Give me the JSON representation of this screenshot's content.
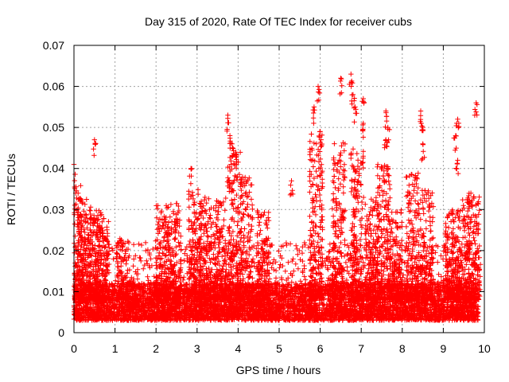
{
  "chart_data": {
    "type": "scatter",
    "title": "Day 315 of 2020, Rate Of TEC Index for receiver cubs",
    "xlabel": "GPS time / hours",
    "ylabel": "ROTI / TECUs",
    "xlim": [
      0,
      10
    ],
    "ylim": [
      0,
      0.07
    ],
    "xticks": [
      "0",
      "1",
      "2",
      "3",
      "4",
      "5",
      "6",
      "7",
      "8",
      "9",
      "10"
    ],
    "yticks": [
      "0",
      "0.01",
      "0.02",
      "0.03",
      "0.04",
      "0.05",
      "0.06",
      "0.07"
    ],
    "grid": true,
    "marker": "plus",
    "color": "#ff0000",
    "data_span_hours": [
      0,
      9.85
    ],
    "baseline_range": [
      0.003,
      0.012
    ],
    "notable_points": [
      {
        "x": 0.0,
        "y": 0.041
      },
      {
        "x": 0.5,
        "y": 0.047
      },
      {
        "x": 2.85,
        "y": 0.04
      },
      {
        "x": 3.75,
        "y": 0.053
      },
      {
        "x": 3.8,
        "y": 0.048
      },
      {
        "x": 3.85,
        "y": 0.046
      },
      {
        "x": 5.3,
        "y": 0.037
      },
      {
        "x": 5.85,
        "y": 0.055
      },
      {
        "x": 5.95,
        "y": 0.06
      },
      {
        "x": 6.0,
        "y": 0.049
      },
      {
        "x": 6.5,
        "y": 0.062
      },
      {
        "x": 6.75,
        "y": 0.063
      },
      {
        "x": 6.8,
        "y": 0.058
      },
      {
        "x": 6.85,
        "y": 0.055
      },
      {
        "x": 7.05,
        "y": 0.057
      },
      {
        "x": 7.05,
        "y": 0.051
      },
      {
        "x": 7.6,
        "y": 0.054
      },
      {
        "x": 7.65,
        "y": 0.05
      },
      {
        "x": 7.6,
        "y": 0.047
      },
      {
        "x": 8.45,
        "y": 0.054
      },
      {
        "x": 8.5,
        "y": 0.05
      },
      {
        "x": 8.5,
        "y": 0.046
      },
      {
        "x": 9.35,
        "y": 0.052
      },
      {
        "x": 9.3,
        "y": 0.048
      },
      {
        "x": 9.35,
        "y": 0.042
      },
      {
        "x": 9.8,
        "y": 0.056
      }
    ],
    "activity_bursts": [
      {
        "x": 0.05,
        "peak": 0.036
      },
      {
        "x": 0.25,
        "peak": 0.033
      },
      {
        "x": 0.55,
        "peak": 0.03
      },
      {
        "x": 0.7,
        "peak": 0.028
      },
      {
        "x": 1.2,
        "peak": 0.023
      },
      {
        "x": 2.15,
        "peak": 0.031
      },
      {
        "x": 2.45,
        "peak": 0.032
      },
      {
        "x": 2.95,
        "peak": 0.035
      },
      {
        "x": 3.2,
        "peak": 0.033
      },
      {
        "x": 3.55,
        "peak": 0.033
      },
      {
        "x": 3.9,
        "peak": 0.044
      },
      {
        "x": 4.2,
        "peak": 0.038
      },
      {
        "x": 4.6,
        "peak": 0.03
      },
      {
        "x": 5.9,
        "peak": 0.049
      },
      {
        "x": 6.45,
        "peak": 0.047
      },
      {
        "x": 6.9,
        "peak": 0.045
      },
      {
        "x": 7.25,
        "peak": 0.033
      },
      {
        "x": 7.55,
        "peak": 0.041
      },
      {
        "x": 7.85,
        "peak": 0.03
      },
      {
        "x": 8.25,
        "peak": 0.039
      },
      {
        "x": 8.6,
        "peak": 0.035
      },
      {
        "x": 9.2,
        "peak": 0.03
      },
      {
        "x": 9.5,
        "peak": 0.033
      },
      {
        "x": 9.75,
        "peak": 0.034
      }
    ]
  }
}
